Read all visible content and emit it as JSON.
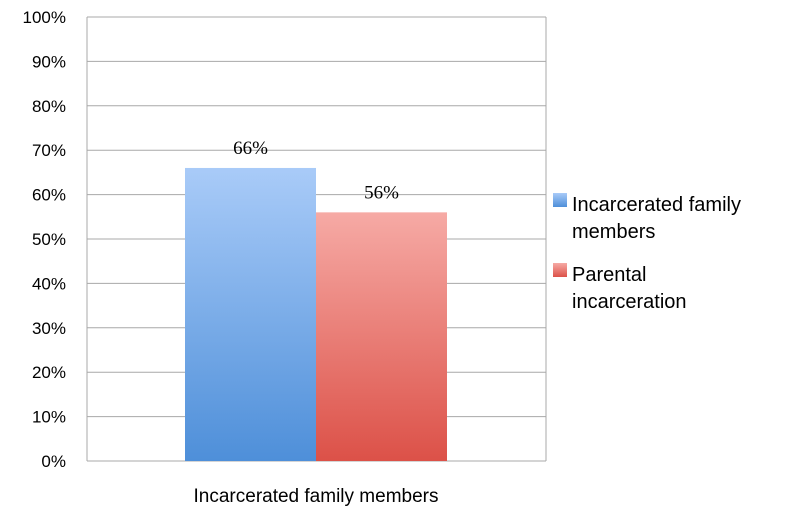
{
  "chart_data": {
    "type": "bar",
    "categories": [
      "Incarcerated family members"
    ],
    "series": [
      {
        "name": "Incarcerated family members",
        "values": [
          66
        ],
        "color": "#5e9ae3",
        "data_label": "66%"
      },
      {
        "name": "Parental incarceration",
        "values": [
          56
        ],
        "color": "#e66f6a",
        "data_label": "56%"
      }
    ],
    "legend_lines": [
      [
        "Incarcerated family",
        "members"
      ],
      [
        "Parental",
        "incarceration"
      ]
    ],
    "y_ticks": [
      "0%",
      "10%",
      "20%",
      "30%",
      "40%",
      "50%",
      "60%",
      "70%",
      "80%",
      "90%",
      "100%"
    ],
    "ylim": [
      0,
      100
    ],
    "y_unit": "%",
    "grid": true,
    "legend_position": "right",
    "title": "",
    "xlabel": "",
    "ylabel": ""
  }
}
